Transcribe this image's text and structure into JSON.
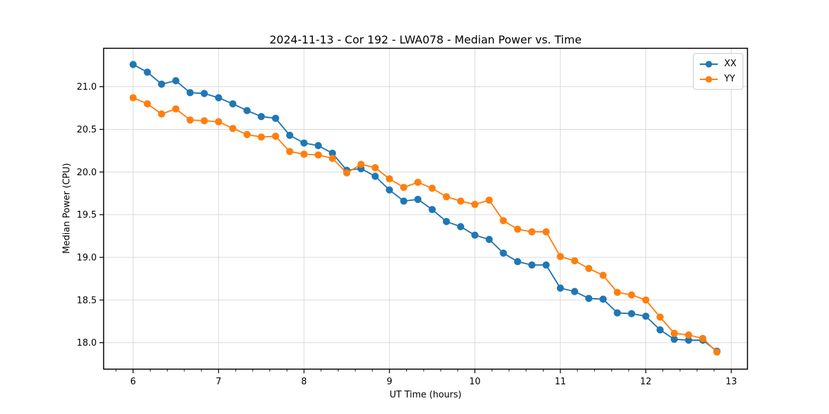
{
  "figure": {
    "title": "2024-11-13 - Cor 192 - LWA078 - Median Power vs. Time",
    "xlabel": "UT Time (hours)",
    "ylabel": "Median Power (CPU)"
  },
  "chart_data": {
    "type": "line",
    "title": "2024-11-13 - Cor 192 - LWA078 - Median Power vs. Time",
    "xlabel": "UT Time (hours)",
    "ylabel": "Median Power (CPU)",
    "xlim": [
      5.655,
      13.19
    ],
    "ylim": [
      17.69,
      21.45
    ],
    "x_ticks": [
      6,
      7,
      8,
      9,
      10,
      11,
      12,
      13
    ],
    "y_ticks": [
      18.0,
      18.5,
      19.0,
      19.5,
      20.0,
      20.5,
      21.0
    ],
    "x_minor_step": 0.2,
    "grid": true,
    "legend_position": "upper right",
    "marker": "circle",
    "x": [
      6.0,
      6.167,
      6.333,
      6.5,
      6.667,
      6.833,
      7.0,
      7.167,
      7.333,
      7.5,
      7.667,
      7.833,
      8.0,
      8.167,
      8.333,
      8.5,
      8.667,
      8.833,
      9.0,
      9.167,
      9.333,
      9.5,
      9.667,
      9.833,
      10.0,
      10.167,
      10.333,
      10.5,
      10.667,
      10.833,
      11.0,
      11.167,
      11.333,
      11.5,
      11.667,
      11.833,
      12.0,
      12.167,
      12.333,
      12.5,
      12.667,
      12.833
    ],
    "series": [
      {
        "name": "XX",
        "color": "#1f77b4",
        "values": [
          21.26,
          21.17,
          21.03,
          21.07,
          20.93,
          20.92,
          20.87,
          20.8,
          20.72,
          20.65,
          20.63,
          20.43,
          20.34,
          20.31,
          20.22,
          20.02,
          20.04,
          19.95,
          19.79,
          19.66,
          19.68,
          19.56,
          19.42,
          19.36,
          19.26,
          19.21,
          19.05,
          18.95,
          18.91,
          18.91,
          18.64,
          18.6,
          18.52,
          18.51,
          18.35,
          18.34,
          18.31,
          18.15,
          18.04,
          18.03,
          18.03,
          17.9
        ]
      },
      {
        "name": "YY",
        "color": "#ff7f0e",
        "values": [
          20.87,
          20.8,
          20.68,
          20.74,
          20.61,
          20.6,
          20.59,
          20.51,
          20.44,
          20.41,
          20.42,
          20.24,
          20.21,
          20.2,
          20.16,
          19.99,
          20.09,
          20.05,
          19.92,
          19.82,
          19.88,
          19.81,
          19.71,
          19.66,
          19.62,
          19.67,
          19.43,
          19.33,
          19.3,
          19.3,
          19.01,
          18.96,
          18.87,
          18.79,
          18.59,
          18.56,
          18.5,
          18.3,
          18.11,
          18.09,
          18.05,
          17.89
        ]
      }
    ]
  }
}
